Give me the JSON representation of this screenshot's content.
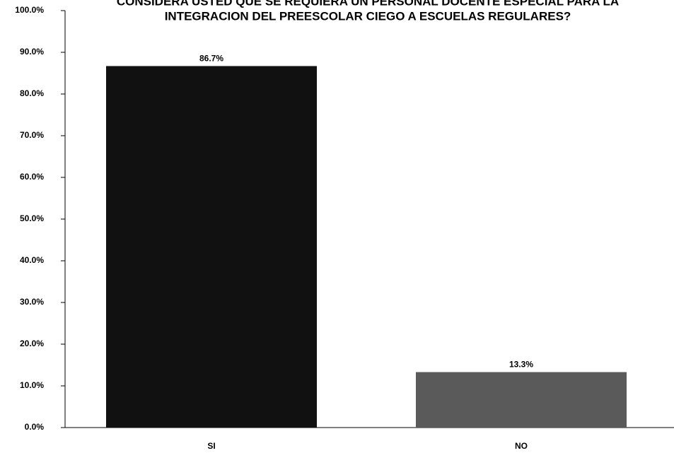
{
  "chart_data": {
    "type": "bar",
    "title": [
      "CONSIDERA USTED QUE SE REQUIERA UN PERSONAL DOCENTE ESPECIAL PARA LA",
      "INTEGRACION DEL PREESCOLAR CIEGO A ESCUELAS REGULARES?"
    ],
    "categories": [
      "SI",
      "NO"
    ],
    "values": [
      86.7,
      13.3
    ],
    "value_labels": [
      "86.7%",
      "13.3%"
    ],
    "colors": [
      "#111111",
      "#5a5a5a"
    ],
    "ylim": [
      0,
      100
    ],
    "yticks": [
      {
        "value": 0,
        "label": "0.0%"
      },
      {
        "value": 10,
        "label": "10.0%"
      },
      {
        "value": 20,
        "label": "20.0%"
      },
      {
        "value": 30,
        "label": "30.0%"
      },
      {
        "value": 40,
        "label": "40.0%"
      },
      {
        "value": 50,
        "label": "50.0%"
      },
      {
        "value": 60,
        "label": "60.0%"
      },
      {
        "value": 70,
        "label": "70.0%"
      },
      {
        "value": 80,
        "label": "80.0%"
      },
      {
        "value": 90,
        "label": "90.0%"
      },
      {
        "value": 100,
        "label": "100.0%"
      }
    ]
  }
}
